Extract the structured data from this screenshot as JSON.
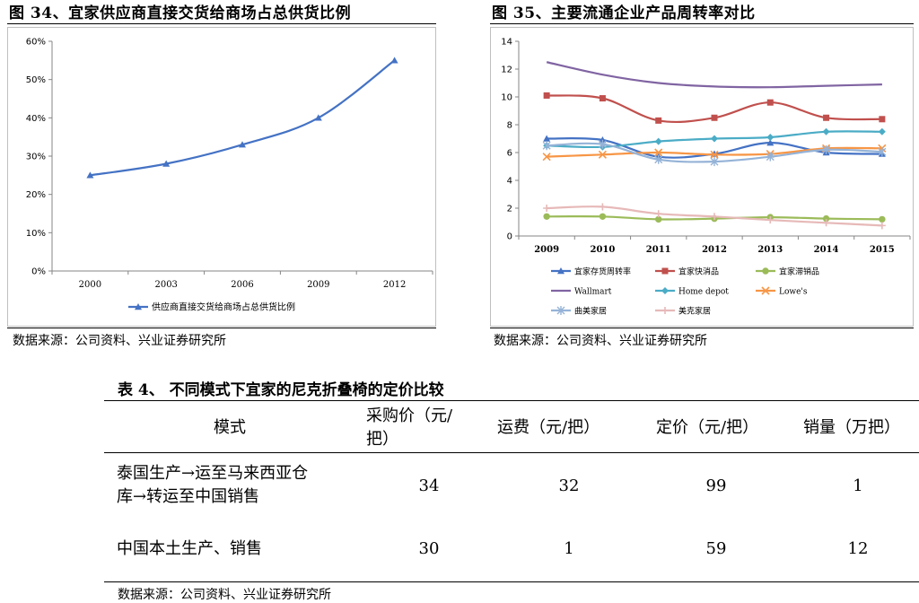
{
  "left_panel": {
    "title": "图 34、宜家供应商直接交货给商场占总供货比例",
    "source": "数据来源：公司资料、兴业证券研究所"
  },
  "right_panel": {
    "title": "图 35、主要流通企业产品周转率对比",
    "source": "数据来源：公司资料、兴业证券研究所"
  },
  "table": {
    "title": "表 4、 不同模式下宜家的尼克折叠椅的定价比较",
    "headers": [
      "模式",
      "采购价（元/把）",
      "运费（元/把）",
      "定价（元/把）",
      "销量（万把）"
    ],
    "header_price_line1": "采购价（元/",
    "header_price_line2": "把）",
    "rows": [
      {
        "mode_line1": "泰国生产→运至马来西亚仓",
        "mode_line2": "库→转运至中国销售",
        "price": "34",
        "freight": "32",
        "list_price": "99",
        "volume": "1"
      },
      {
        "mode_line1": "中国本土生产、销售",
        "mode_line2": "",
        "price": "30",
        "freight": "1",
        "list_price": "59",
        "volume": "12"
      }
    ],
    "source": "数据来源：公司资料、兴业证券研究所"
  },
  "colors": {
    "blue": "#4472C4",
    "red": "#C0504D",
    "green": "#9BBB59",
    "purple": "#8064A2",
    "teal": "#4BACC6",
    "orange": "#F79646",
    "lightblue": "#95B3D7",
    "pink": "#E6B9B8"
  },
  "chart_data": [
    {
      "type": "line",
      "title": "图 34、宜家供应商直接交货给商场占总供货比例",
      "categories": [
        "2000",
        "2003",
        "2006",
        "2009",
        "2012"
      ],
      "series": [
        {
          "name": "供应商直接交货给商场占总供货比例",
          "values": [
            25,
            28,
            33,
            40,
            55
          ],
          "color": "#4472C4",
          "marker": "triangle"
        }
      ],
      "yticks": [
        "0%",
        "10%",
        "20%",
        "30%",
        "40%",
        "50%",
        "60%"
      ],
      "ylim": [
        0,
        60
      ],
      "smooth": true,
      "legend": "bottom"
    },
    {
      "type": "line",
      "title": "图 35、主要流通企业产品周转率对比",
      "categories": [
        "2009",
        "2010",
        "2011",
        "2012",
        "2013",
        "2014",
        "2015"
      ],
      "series": [
        {
          "name": "宜家存货周转率",
          "values": [
            7.0,
            6.9,
            5.7,
            5.9,
            6.7,
            6.0,
            5.9
          ],
          "color": "#4472C4",
          "marker": "triangle"
        },
        {
          "name": "宜家快消品",
          "values": [
            10.1,
            9.9,
            8.3,
            8.5,
            9.6,
            8.5,
            8.4
          ],
          "color": "#C0504D",
          "marker": "square"
        },
        {
          "name": "宜家滞销品",
          "values": [
            1.4,
            1.4,
            1.2,
            1.25,
            1.35,
            1.25,
            1.2
          ],
          "color": "#9BBB59",
          "marker": "circle"
        },
        {
          "name": "Wallmart",
          "values": [
            12.5,
            11.6,
            11.0,
            10.75,
            10.7,
            10.8,
            10.9
          ],
          "color": "#8064A2",
          "marker": "none"
        },
        {
          "name": "Home depot",
          "values": [
            6.5,
            6.4,
            6.8,
            7.0,
            7.1,
            7.5,
            7.5
          ],
          "color": "#4BACC6",
          "marker": "diamond"
        },
        {
          "name": "Lowe's",
          "values": [
            5.7,
            5.85,
            6.0,
            5.85,
            5.9,
            6.3,
            6.3
          ],
          "color": "#F79646",
          "marker": "x"
        },
        {
          "name": "曲美家居",
          "values": [
            6.5,
            6.6,
            5.5,
            5.35,
            5.7,
            6.2,
            6.05
          ],
          "color": "#95B3D7",
          "marker": "star"
        },
        {
          "name": "美克家居",
          "values": [
            2.0,
            2.1,
            1.6,
            1.4,
            1.15,
            0.95,
            0.75
          ],
          "color": "#E6B9B8",
          "marker": "plus"
        }
      ],
      "yticks": [
        "0",
        "2",
        "4",
        "6",
        "8",
        "10",
        "12",
        "14"
      ],
      "ylim": [
        0,
        14
      ],
      "smooth": true,
      "legend": "bottom"
    }
  ]
}
